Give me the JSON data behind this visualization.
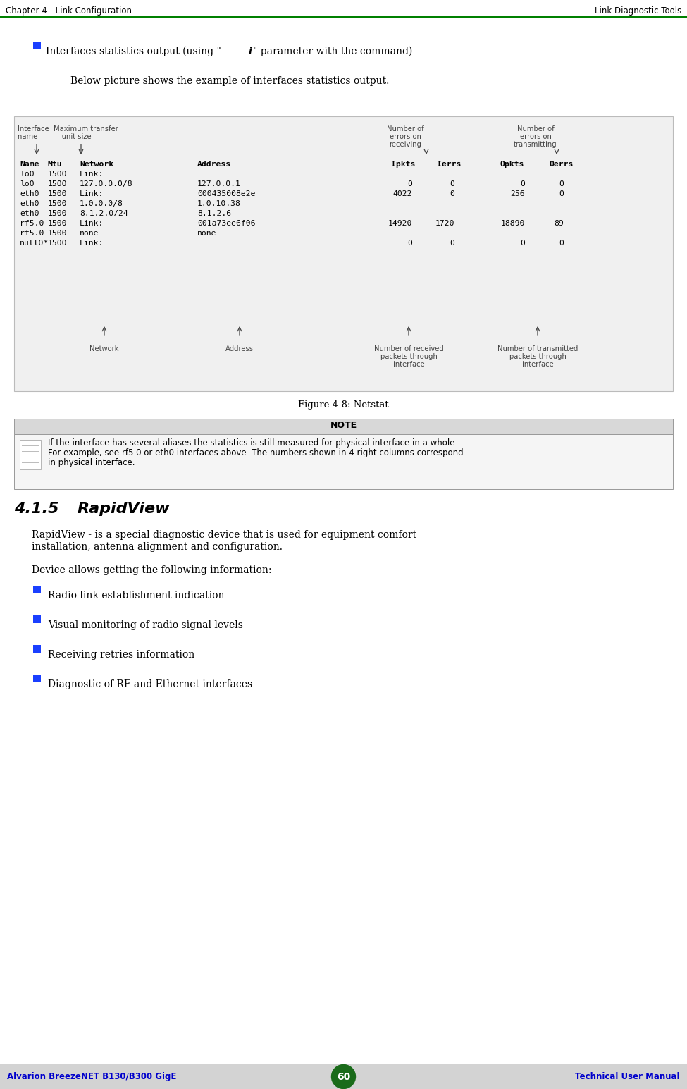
{
  "header_left": "Chapter 4 - Link Configuration",
  "header_right": "Link Diagnostic Tools",
  "header_line_color": "#008000",
  "footer_left": "Alvarion BreezeNET B130/B300 GigE",
  "footer_center": "60",
  "footer_right": "Technical User Manual",
  "footer_bg": "#d3d3d3",
  "footer_text_color": "#0000cc",
  "footer_circle_color": "#1a6b1a",
  "bullet_color": "#1a3fff",
  "para1": "Below picture shows the example of interfaces statistics output.",
  "figure_caption": "Figure 4-8: Netstat",
  "note_header": "NOTE",
  "note_text": "If the interface has several aliases the statistics is still measured for physical interface in a whole.\nFor example, see rf5.0 or eth0 interfaces above. The numbers shown in 4 right columns correspond\nin physical interface.",
  "section_num": "4.1.5",
  "section_title": "RapidView",
  "section_para1": "RapidView - is a special diagnostic device that is used for equipment comfort\ninstallation, antenna alignment and configuration.",
  "section_para2": "Device allows getting the following information:",
  "bullet2_items": [
    "Radio link establishment indication",
    "Visual monitoring of radio signal levels",
    "Receiving retries information",
    "Diagnostic of RF and Ethernet interfaces"
  ],
  "page_bg": "#ffffff",
  "ann_color": "#444444",
  "mono_color": "#000000",
  "term_bg": "#e8e8e8"
}
